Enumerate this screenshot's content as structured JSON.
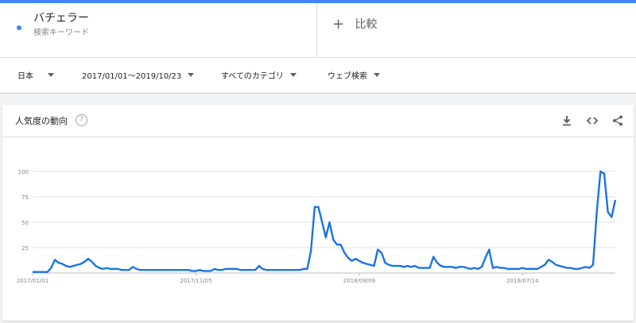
{
  "term": {
    "title": "バチェラー",
    "subtitle": "検索キーワード",
    "dot_color": "#4285f4"
  },
  "compare": {
    "label": "比較",
    "plus": "+"
  },
  "filters": {
    "region": "日本",
    "date_range": "2017/01/01〜2019/10/23",
    "category": "すべてのカテゴリ",
    "search_type": "ウェブ検索"
  },
  "card": {
    "title": "人気度の動向",
    "help": "?"
  },
  "chart_data": {
    "type": "line",
    "color": "#1a73e8",
    "ylim": [
      0,
      100
    ],
    "yticks": [
      "100",
      "75",
      "50",
      "25"
    ],
    "xtick_labels": [
      "2017/01/01",
      "2017/11/05",
      "2018/09/09",
      "2019/07/14"
    ],
    "xtick_index": [
      0,
      44,
      88,
      132
    ],
    "series": [
      {
        "values": [
          1,
          1,
          1,
          1,
          1,
          5,
          13,
          10,
          9,
          7,
          6,
          7,
          8,
          9,
          11,
          14,
          11,
          7,
          5,
          4,
          5,
          4,
          4,
          4,
          3,
          3,
          3,
          6,
          4,
          3,
          3,
          3,
          3,
          3,
          3,
          3,
          3,
          3,
          3,
          3,
          3,
          3,
          3,
          2,
          2,
          3,
          2,
          2,
          2,
          4,
          3,
          3,
          4,
          4,
          4,
          4,
          3,
          3,
          3,
          3,
          3,
          7,
          4,
          3,
          3,
          3,
          3,
          3,
          3,
          3,
          3,
          3,
          3,
          4,
          4,
          22,
          65,
          65,
          50,
          35,
          50,
          33,
          28,
          28,
          20,
          15,
          12,
          14,
          12,
          10,
          9,
          8,
          7,
          23,
          20,
          10,
          8,
          7,
          7,
          7,
          6,
          7,
          6,
          7,
          5,
          5,
          5,
          5,
          16,
          10,
          7,
          6,
          6,
          6,
          5,
          6,
          6,
          5,
          4,
          5,
          4,
          6,
          15,
          23,
          5,
          6,
          5,
          5,
          4,
          4,
          4,
          4,
          5,
          4,
          4,
          4,
          4,
          6,
          8,
          13,
          11,
          8,
          7,
          6,
          5,
          5,
          4,
          4,
          5,
          6,
          5,
          8,
          60,
          100,
          98,
          60,
          55,
          72
        ]
      }
    ]
  }
}
